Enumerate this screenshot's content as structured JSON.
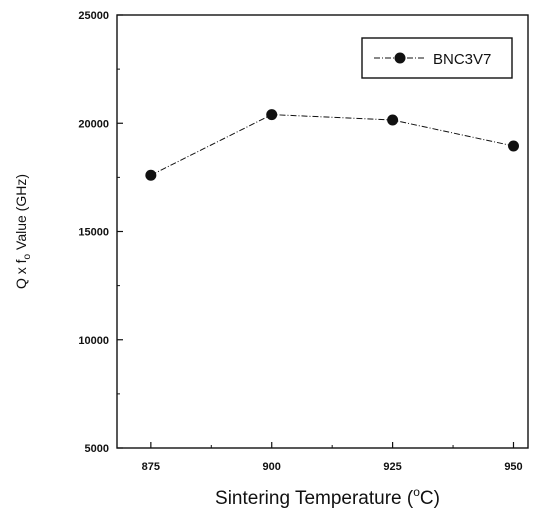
{
  "chart_data": {
    "type": "line",
    "title": "",
    "xlabel": "Sintering Temperature (°C)",
    "xlabel_parts": {
      "before": "Sintering Temperature (",
      "degree": "o",
      "after": "C)"
    },
    "ylabel": "Q x fo Value (GHz)",
    "ylabel_parts": {
      "before": "Q x f",
      "sub": "o",
      "after": " Value (GHz)"
    },
    "xlim": [
      868,
      953
    ],
    "ylim": [
      5000,
      25000
    ],
    "xticks": [
      875,
      900,
      925,
      950
    ],
    "yticks": [
      5000,
      10000,
      15000,
      20000,
      25000
    ],
    "x_tick_labels": [
      "875",
      "900",
      "925",
      "950"
    ],
    "y_tick_labels": [
      "5000",
      "10000",
      "15000",
      "20000",
      "25000"
    ],
    "grid": false,
    "legend_position": "top-right",
    "series": [
      {
        "name": "BNC3V7",
        "x": [
          875,
          900,
          925,
          950
        ],
        "y": [
          17600,
          20400,
          20150,
          18950
        ],
        "color": "#111111",
        "marker": "circle",
        "line_style": "dash-dot"
      }
    ]
  }
}
